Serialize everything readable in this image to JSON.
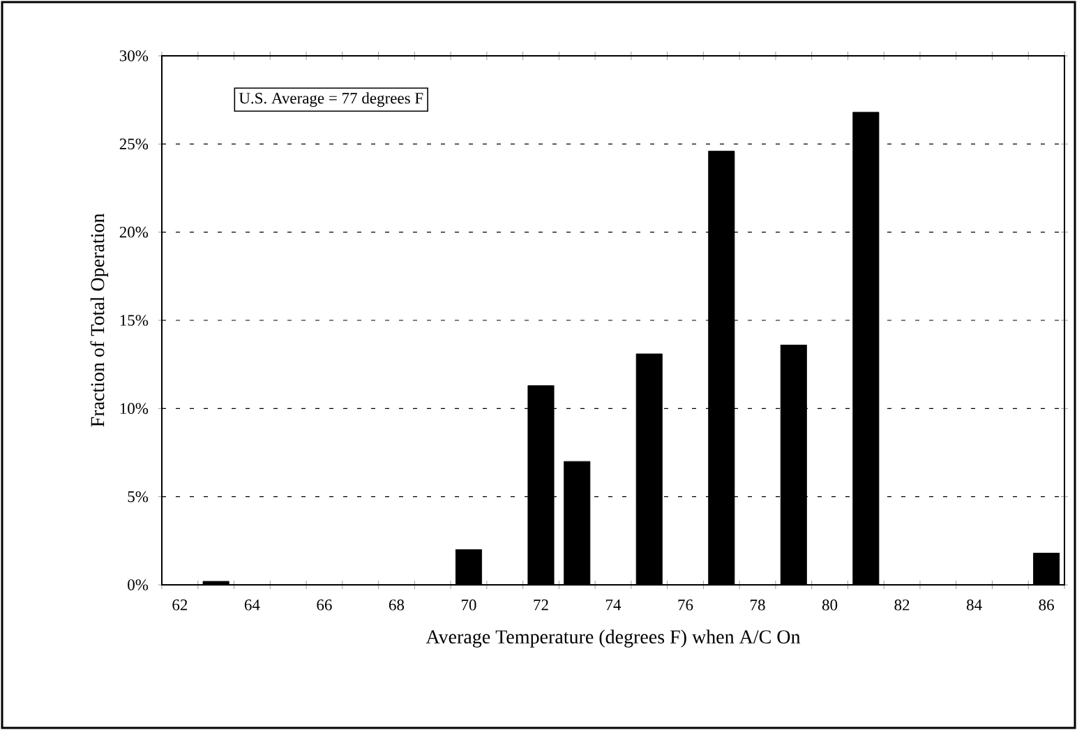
{
  "chart_data": {
    "type": "bar",
    "xlabel": "Average Temperature (degrees F) when A/C On",
    "ylabel": "Fraction of Total Operation",
    "categories": [
      "62",
      null,
      "64",
      null,
      "66",
      null,
      "68",
      null,
      "70",
      null,
      "72",
      null,
      "74",
      null,
      "76",
      null,
      "78",
      null,
      "80",
      null,
      "82",
      null,
      "84",
      null,
      "86"
    ],
    "values": [
      null,
      0.2,
      null,
      null,
      null,
      null,
      null,
      null,
      2.0,
      null,
      11.3,
      7.0,
      null,
      13.1,
      null,
      24.6,
      null,
      13.6,
      null,
      26.8,
      null,
      null,
      null,
      null,
      1.8
    ],
    "color": "#000000",
    "ylim": [
      0,
      30
    ],
    "yticks": [
      {
        "value": 0,
        "label": "0%"
      },
      {
        "value": 5,
        "label": "5%"
      },
      {
        "value": 10,
        "label": "10%"
      },
      {
        "value": 15,
        "label": "15%"
      },
      {
        "value": 20,
        "label": "20%"
      },
      {
        "value": 25,
        "label": "25%"
      },
      {
        "value": 30,
        "label": "30%"
      }
    ],
    "grid": "y",
    "annotations": [
      "U.S. Average = 77 degrees F"
    ]
  }
}
